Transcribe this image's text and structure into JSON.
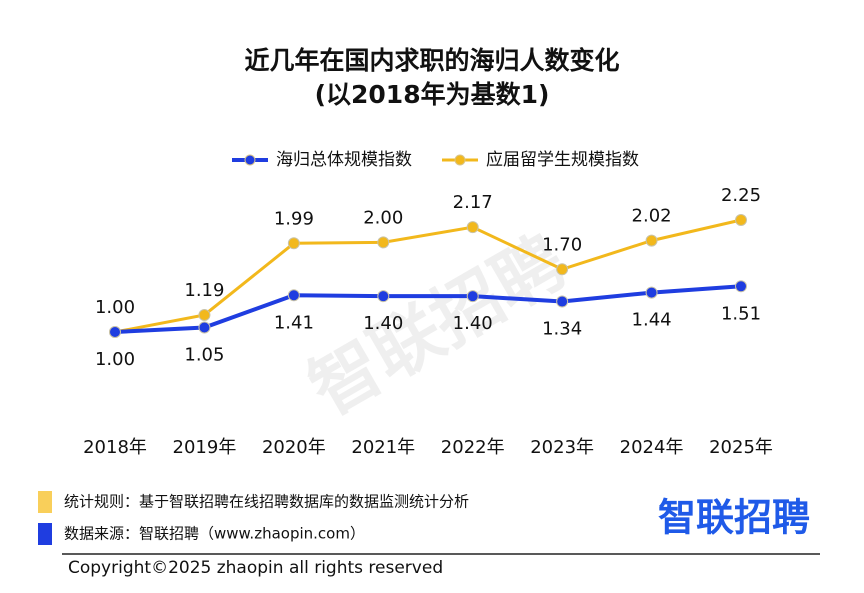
{
  "chart_data": {
    "type": "line",
    "title": "近几年在国内求职的海归人数变化",
    "subtitle": "(以2018年为基数1)",
    "categories": [
      "2018年",
      "2019年",
      "2020年",
      "2021年",
      "2022年",
      "2023年",
      "2024年",
      "2025年"
    ],
    "series": [
      {
        "name": "海归总体规模指数",
        "color": "#1f3de0",
        "values": [
          1.0,
          1.05,
          1.41,
          1.4,
          1.4,
          1.34,
          1.44,
          1.51
        ],
        "value_labels": [
          "1.00",
          "1.05",
          "1.41",
          "1.40",
          "1.40",
          "1.34",
          "1.44",
          "1.51"
        ]
      },
      {
        "name": "应届留学生规模指数",
        "color": "#f2b81c",
        "values": [
          1.0,
          1.19,
          1.99,
          2.0,
          2.17,
          1.7,
          2.02,
          2.25
        ],
        "value_labels": [
          "1.00",
          "1.19",
          "1.99",
          "2.00",
          "2.17",
          "1.70",
          "2.02",
          "2.25"
        ]
      }
    ],
    "legend": "top"
  },
  "footer": {
    "notes": [
      {
        "text": "统计规则：基于智联招聘在线招聘数据库的数据监测统计分析",
        "color": "#f9cf5a"
      },
      {
        "text": "数据来源：智联招聘（www.zhaopin.com）",
        "color": "#1f3de0"
      }
    ],
    "logo": "智联招聘",
    "copyright": "Copyright©2025 zhaopin all rights reserved"
  },
  "watermark": "智联招聘"
}
